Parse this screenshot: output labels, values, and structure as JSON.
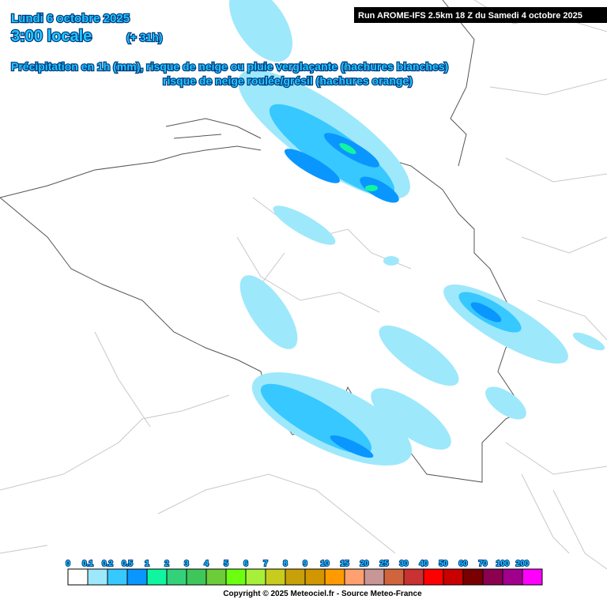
{
  "header": {
    "date": "Lundi 6 octobre 2025",
    "time": "3:00 locale",
    "lead": "(+ 31h)",
    "line1": "Précipitation en 1h (mm), risque de neige ou pluie verglaçante (hachures blanches)",
    "line2": "risque de neige roulée/grésil (hachures orange)",
    "run": "Run AROME-IFS 2.5km 18 Z du Samedi 4 octobre 2025"
  },
  "legend": {
    "labels": [
      "0",
      "0.1",
      "0.2",
      "0.5",
      "1",
      "2",
      "3",
      "4",
      "5",
      "6",
      "7",
      "8",
      "9",
      "10",
      "15",
      "20",
      "25",
      "30",
      "40",
      "50",
      "60",
      "70",
      "100",
      "200"
    ],
    "colors": [
      "#ffffff",
      "#9ee8fb",
      "#37c8ff",
      "#0a96ff",
      "#10f5a0",
      "#33d27a",
      "#3ec65a",
      "#6ccc3a",
      "#6cff10",
      "#a6f03a",
      "#c8cc1e",
      "#c8a00a",
      "#d29600",
      "#ff9b00",
      "#ffa070",
      "#c89696",
      "#d0643c",
      "#c83232",
      "#ff0000",
      "#c80000",
      "#780000",
      "#8c0050",
      "#a0008c",
      "#ff00ff"
    ]
  },
  "footer": {
    "copyright": "Copyright © 2025 Meteociel.fr - Source Meteo-France"
  }
}
